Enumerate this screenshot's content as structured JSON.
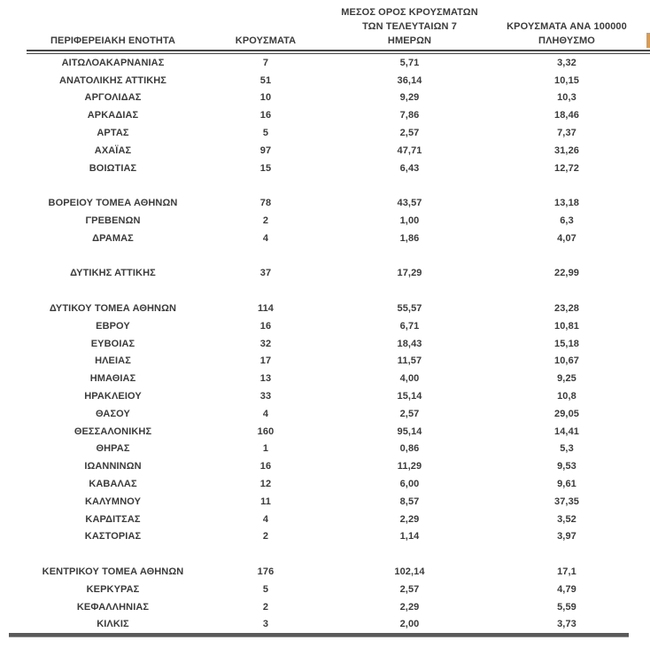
{
  "table": {
    "columns": [
      {
        "key": "region",
        "label": "ΠΕΡΙΦΕΡΕΙΑΚΗ ΕΝΟΤΗΤΑ"
      },
      {
        "key": "cases",
        "label": "ΚΡΟΥΣΜΑΤΑ"
      },
      {
        "key": "avg7",
        "label": "ΜΕΣΟΣ ΟΡΟΣ ΚΡΟΥΣΜΑΤΩΝ\nΤΩΝ ΤΕΛΕΥΤΑΙΩΝ 7\nΗΜΕΡΩΝ"
      },
      {
        "key": "per100k",
        "label": "ΚΡΟΥΣΜΑΤΑ ΑΝΑ 100000\nΠΛΗΘΥΣΜΟ"
      }
    ],
    "rows": [
      {
        "region": "ΑΙΤΩΛΟΑΚΑΡΝΑΝΙΑΣ",
        "cases": "7",
        "avg7": "5,71",
        "per100k": "3,32"
      },
      {
        "region": "ΑΝΑΤΟΛΙΚΗΣ ΑΤΤΙΚΗΣ",
        "cases": "51",
        "avg7": "36,14",
        "per100k": "10,15"
      },
      {
        "region": "ΑΡΓΟΛΙΔΑΣ",
        "cases": "10",
        "avg7": "9,29",
        "per100k": "10,3"
      },
      {
        "region": "ΑΡΚΑΔΙΑΣ",
        "cases": "16",
        "avg7": "7,86",
        "per100k": "18,46"
      },
      {
        "region": "ΑΡΤΑΣ",
        "cases": "5",
        "avg7": "2,57",
        "per100k": "7,37"
      },
      {
        "region": "ΑΧΑΪΑΣ",
        "cases": "97",
        "avg7": "47,71",
        "per100k": "31,26"
      },
      {
        "region": "ΒΟΙΩΤΙΑΣ",
        "cases": "15",
        "avg7": "6,43",
        "per100k": "12,72"
      },
      {
        "spacer": true
      },
      {
        "region": "ΒΟΡΕΙΟΥ ΤΟΜΕΑ ΑΘΗΝΩΝ",
        "cases": "78",
        "avg7": "43,57",
        "per100k": "13,18"
      },
      {
        "region": "ΓΡΕΒΕΝΩΝ",
        "cases": "2",
        "avg7": "1,00",
        "per100k": "6,3"
      },
      {
        "region": "ΔΡΑΜΑΣ",
        "cases": "4",
        "avg7": "1,86",
        "per100k": "4,07"
      },
      {
        "spacer": true
      },
      {
        "region": "ΔΥΤΙΚΗΣ ΑΤΤΙΚΗΣ",
        "cases": "37",
        "avg7": "17,29",
        "per100k": "22,99"
      },
      {
        "spacer": true
      },
      {
        "region": "ΔΥΤΙΚΟΥ ΤΟΜΕΑ ΑΘΗΝΩΝ",
        "cases": "114",
        "avg7": "55,57",
        "per100k": "23,28"
      },
      {
        "region": "ΕΒΡΟΥ",
        "cases": "16",
        "avg7": "6,71",
        "per100k": "10,81"
      },
      {
        "region": "ΕΥΒΟΙΑΣ",
        "cases": "32",
        "avg7": "18,43",
        "per100k": "15,18"
      },
      {
        "region": "ΗΛΕΙΑΣ",
        "cases": "17",
        "avg7": "11,57",
        "per100k": "10,67"
      },
      {
        "region": "ΗΜΑΘΙΑΣ",
        "cases": "13",
        "avg7": "4,00",
        "per100k": "9,25"
      },
      {
        "region": "ΗΡΑΚΛΕΙΟΥ",
        "cases": "33",
        "avg7": "15,14",
        "per100k": "10,8"
      },
      {
        "region": "ΘΑΣΟΥ",
        "cases": "4",
        "avg7": "2,57",
        "per100k": "29,05"
      },
      {
        "region": "ΘΕΣΣΑΛΟΝΙΚΗΣ",
        "cases": "160",
        "avg7": "95,14",
        "per100k": "14,41"
      },
      {
        "region": "ΘΗΡΑΣ",
        "cases": "1",
        "avg7": "0,86",
        "per100k": "5,3"
      },
      {
        "region": "ΙΩΑΝΝΙΝΩΝ",
        "cases": "16",
        "avg7": "11,29",
        "per100k": "9,53"
      },
      {
        "region": "ΚΑΒΑΛΑΣ",
        "cases": "12",
        "avg7": "6,00",
        "per100k": "9,61"
      },
      {
        "region": "ΚΑΛΥΜΝΟΥ",
        "cases": "11",
        "avg7": "8,57",
        "per100k": "37,35"
      },
      {
        "region": "ΚΑΡΔΙΤΣΑΣ",
        "cases": "4",
        "avg7": "2,29",
        "per100k": "3,52"
      },
      {
        "region": "ΚΑΣΤΟΡΙΑΣ",
        "cases": "2",
        "avg7": "1,14",
        "per100k": "3,97"
      },
      {
        "spacer": true
      },
      {
        "region": "ΚΕΝΤΡΙΚΟΥ ΤΟΜΕΑ ΑΘΗΝΩΝ",
        "cases": "176",
        "avg7": "102,14",
        "per100k": "17,1"
      },
      {
        "region": "ΚΕΡΚΥΡΑΣ",
        "cases": "5",
        "avg7": "2,57",
        "per100k": "4,79"
      },
      {
        "region": "ΚΕΦΑΛΛΗΝΙΑΣ",
        "cases": "2",
        "avg7": "2,29",
        "per100k": "5,59"
      },
      {
        "region": "ΚΙΛΚΙΣ",
        "cases": "3",
        "avg7": "2,00",
        "per100k": "3,73"
      }
    ]
  },
  "colors": {
    "text": "#3b3b3b",
    "rule": "#474747",
    "bottom_rule": "#595959",
    "edge_fragment": "#db9b50",
    "background": "#ffffff"
  }
}
